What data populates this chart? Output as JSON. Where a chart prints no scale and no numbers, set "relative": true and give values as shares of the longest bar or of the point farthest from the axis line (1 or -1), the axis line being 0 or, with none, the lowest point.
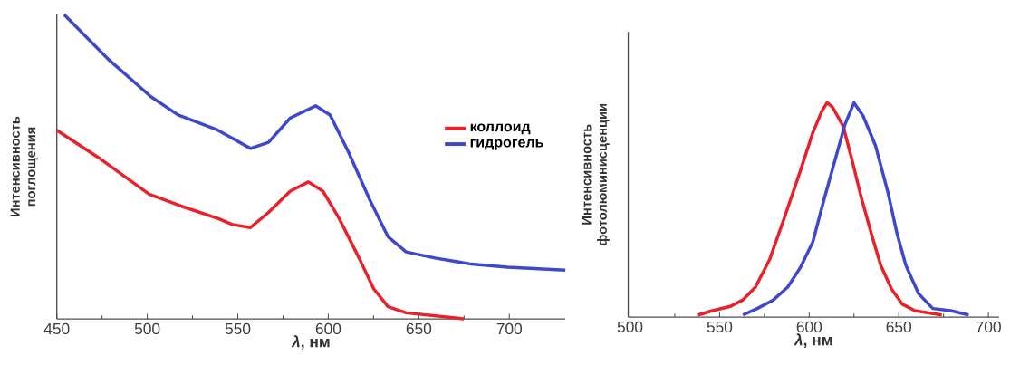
{
  "chart_data": [
    {
      "type": "line",
      "relative": true,
      "xlabel": "*λ*, нм",
      "ylabel": "Интенсивность поглощения",
      "xlim": [
        450,
        731
      ],
      "xticks": [
        450,
        500,
        550,
        600,
        650,
        700
      ],
      "legend": "right",
      "series": [
        {
          "name": "коллоид",
          "color": "#e8212a",
          "x": [
            450,
            473,
            501,
            519,
            539,
            547,
            557,
            567,
            579,
            589,
            597,
            606,
            617,
            625,
            633,
            643,
            659,
            675
          ],
          "values": [
            0.62,
            0.53,
            0.41,
            0.37,
            0.33,
            0.31,
            0.3,
            0.35,
            0.42,
            0.45,
            0.42,
            0.33,
            0.2,
            0.1,
            0.04,
            0.02,
            0.01,
            0
          ]
        },
        {
          "name": "гидрогель",
          "color": "#3f48cc",
          "x": [
            454,
            479,
            502,
            517,
            539,
            557,
            567,
            579,
            593,
            601,
            611,
            623,
            633,
            643,
            659,
            679,
            699,
            731
          ],
          "values": [
            1,
            0.85,
            0.73,
            0.67,
            0.62,
            0.56,
            0.58,
            0.66,
            0.7,
            0.67,
            0.55,
            0.39,
            0.27,
            0.22,
            0.2,
            0.18,
            0.17,
            0.16
          ]
        }
      ]
    },
    {
      "type": "line",
      "relative": true,
      "xlabel": "*λ*, нм",
      "ylabel": "Интенсивность фотолюминисценции",
      "xlim": [
        499,
        706
      ],
      "xticks": [
        500,
        550,
        600,
        650,
        700
      ],
      "series": [
        {
          "color": "#e8212a",
          "x": [
            538,
            546,
            556,
            563,
            570,
            578,
            586,
            595,
            602,
            607,
            610,
            613,
            619,
            624,
            629,
            635,
            640,
            646,
            652,
            659,
            674
          ],
          "values": [
            0.01,
            0.03,
            0.05,
            0.08,
            0.14,
            0.27,
            0.46,
            0.68,
            0.86,
            0.96,
            1,
            0.98,
            0.89,
            0.73,
            0.56,
            0.38,
            0.24,
            0.13,
            0.06,
            0.03,
            0.01
          ]
        },
        {
          "color": "#3f48cc",
          "x": [
            563,
            571,
            580,
            588,
            595,
            602,
            608,
            615,
            620,
            625,
            630,
            637,
            644,
            649,
            654,
            661,
            669,
            679,
            689
          ],
          "values": [
            0.01,
            0.04,
            0.08,
            0.14,
            0.23,
            0.35,
            0.54,
            0.75,
            0.9,
            1,
            0.94,
            0.8,
            0.58,
            0.39,
            0.24,
            0.11,
            0.04,
            0.03,
            0.01
          ]
        }
      ]
    }
  ]
}
